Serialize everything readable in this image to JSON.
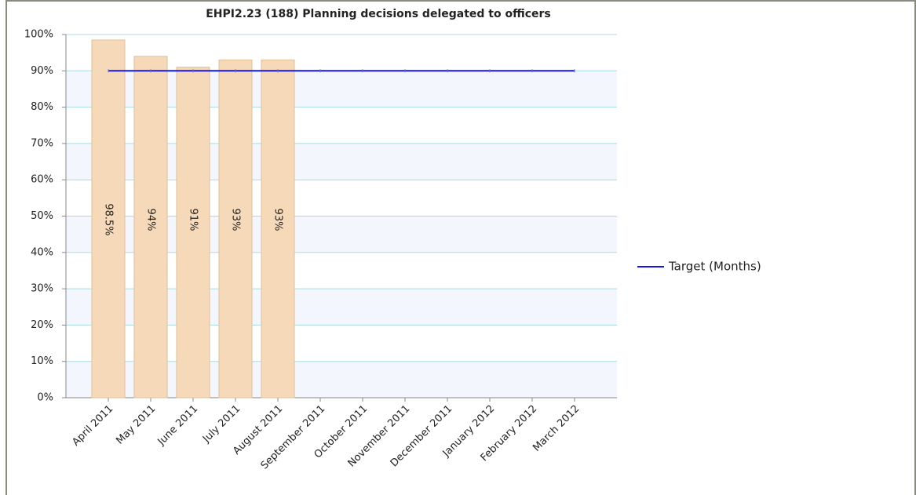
{
  "chart_data": {
    "type": "bar",
    "title": "EHPI2.23 (188) Planning decisions delegated to officers",
    "categories": [
      "April 2011",
      "May 2011",
      "June 2011",
      "July 2011",
      "August 2011",
      "September 2011",
      "October 2011",
      "November 2011",
      "December 2011",
      "January 2012",
      "February 2012",
      "March 2012"
    ],
    "series": [
      {
        "type": "bar",
        "color": "#f6d9b8",
        "values": [
          98.5,
          94,
          91,
          93,
          93,
          null,
          null,
          null,
          null,
          null,
          null,
          null
        ],
        "value_labels": [
          "98.5%",
          "94%",
          "91%",
          "93%",
          "93%",
          null,
          null,
          null,
          null,
          null,
          null,
          null
        ]
      },
      {
        "type": "line",
        "name": "Target (Months)",
        "color": "#1515e8",
        "values": [
          90,
          90,
          90,
          90,
          90,
          90,
          90,
          90,
          90,
          90,
          90,
          90
        ]
      }
    ],
    "ylim": [
      0,
      100
    ],
    "yticks": [
      {
        "value": 0,
        "label": "0%"
      },
      {
        "value": 10,
        "label": "10%"
      },
      {
        "value": 20,
        "label": "20%"
      },
      {
        "value": 30,
        "label": "30%"
      },
      {
        "value": 40,
        "label": "40%"
      },
      {
        "value": 50,
        "label": "50%"
      },
      {
        "value": 60,
        "label": "60%"
      },
      {
        "value": 70,
        "label": "70%"
      },
      {
        "value": 80,
        "label": "80%"
      },
      {
        "value": 90,
        "label": "90%"
      },
      {
        "value": 100,
        "label": "100%"
      }
    ],
    "grid": true,
    "legend": "right"
  }
}
